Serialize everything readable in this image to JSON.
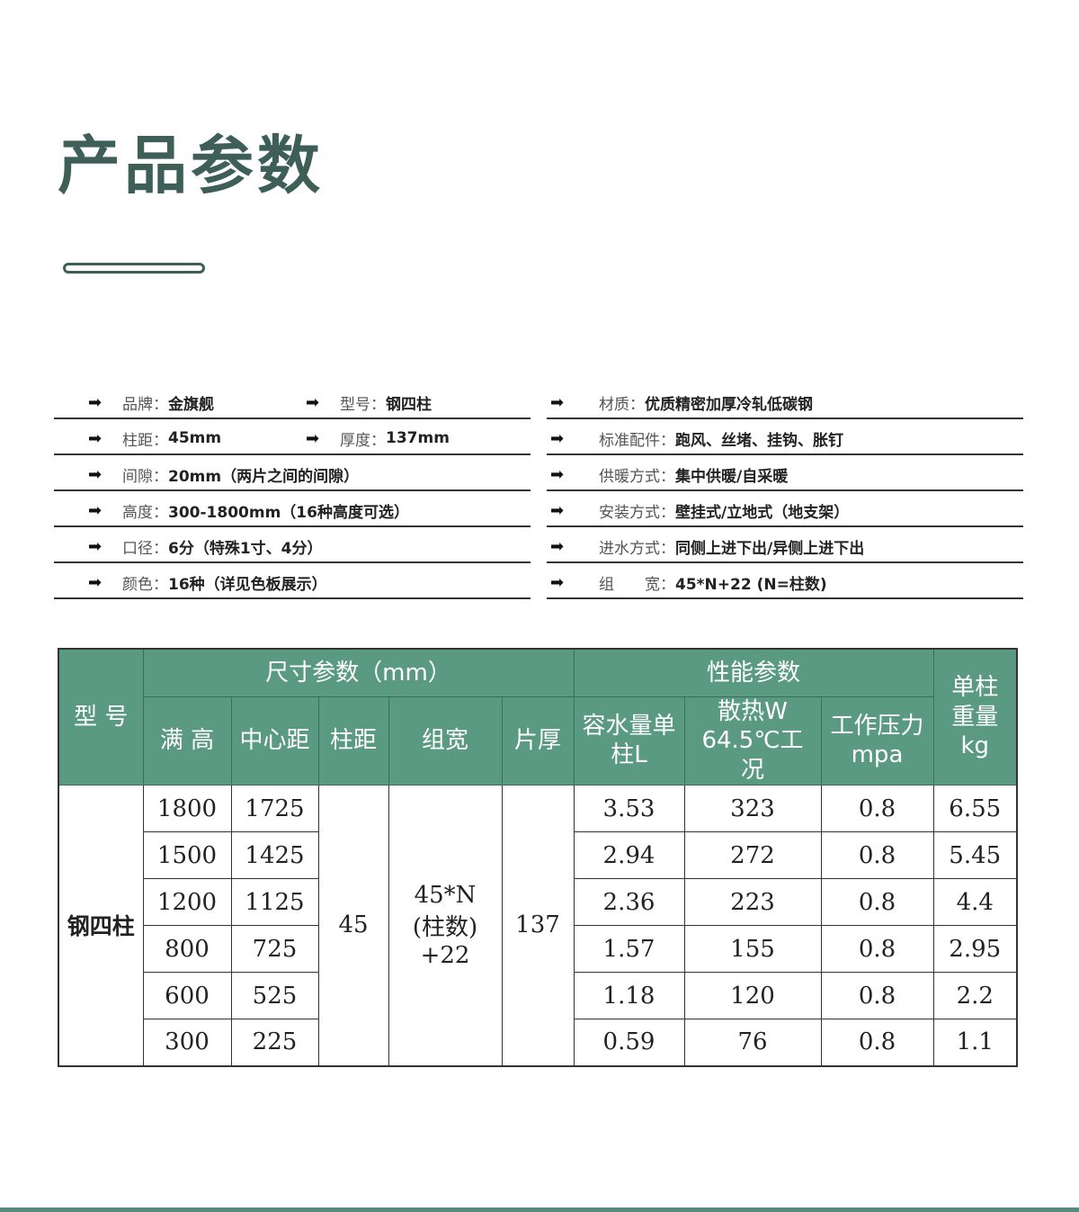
{
  "title": "产品参数",
  "specs_left": [
    [
      {
        "label": "品牌：",
        "value": "金旗舰"
      },
      {
        "label": "型号：",
        "value": "钢四柱"
      }
    ],
    [
      {
        "label": "柱距：",
        "value": "45mm"
      },
      {
        "label": "厚度：",
        "value": "137mm"
      }
    ],
    [
      {
        "label": "间隙：",
        "value": "20mm（两片之间的间隙）"
      }
    ],
    [
      {
        "label": "高度：",
        "value": "300-1800mm（16种高度可选）"
      }
    ],
    [
      {
        "label": "口径：",
        "value": "6分（特殊1寸、4分）"
      }
    ],
    [
      {
        "label": "颜色：",
        "value": "16种（详见色板展示）"
      }
    ]
  ],
  "specs_right": [
    {
      "label": "材质：",
      "value": "优质精密加厚冷轧低碳钢"
    },
    {
      "label": "标准配件：",
      "value": "跑风、丝堵、挂钩、胀钉"
    },
    {
      "label": "供暖方式：",
      "value": "集中供暖/自采暖"
    },
    {
      "label": "安装方式：",
      "value": "壁挂式/立地式（地支架）"
    },
    {
      "label": "进水方式：",
      "value": "同侧上进下出/异侧上进下出"
    },
    {
      "label": "组　　宽：",
      "value": "45*N+22 (N=柱数)"
    }
  ],
  "table": {
    "model_header": "型 号",
    "size_group": "尺寸参数（mm）",
    "perf_group": "性能参数",
    "weight_header": "单柱重量kg",
    "size_cols": [
      "满 高",
      "中心距",
      "柱距",
      "组宽",
      "片厚"
    ],
    "perf_cols": [
      "容水量单柱L",
      "散热W 64.5℃工况",
      "工作压力mpa"
    ],
    "model": "钢四柱",
    "pitch": "45",
    "group_width": "45*N (柱数) +22",
    "thickness": "137",
    "rows": [
      [
        "1800",
        "1725",
        "3.53",
        "323",
        "0.8",
        "6.55"
      ],
      [
        "1500",
        "1425",
        "2.94",
        "272",
        "0.8",
        "5.45"
      ],
      [
        "1200",
        "1125",
        "2.36",
        "223",
        "0.8",
        "4.4"
      ],
      [
        "800",
        "725",
        "1.57",
        "155",
        "0.8",
        "2.95"
      ],
      [
        "600",
        "525",
        "1.18",
        "120",
        "0.8",
        "2.2"
      ],
      [
        "300",
        "225",
        "0.59",
        "76",
        "0.8",
        "1.1"
      ]
    ]
  },
  "colors": {
    "title": "#3d5f57",
    "header": "#5a9a83"
  }
}
